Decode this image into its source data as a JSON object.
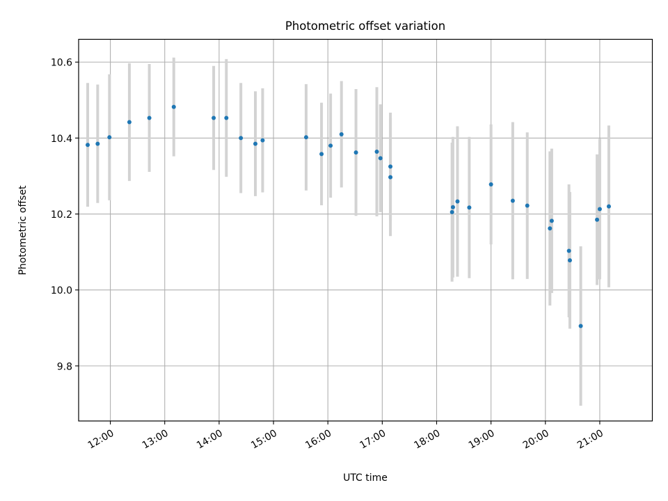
{
  "chart_data": {
    "type": "scatter",
    "title": "Photometric offset variation",
    "xlabel": "UTC time",
    "ylabel": "Photometric offset",
    "x_axis": {
      "kind": "time",
      "range": [
        "11:25",
        "21:58"
      ],
      "ticks": [
        "12:00",
        "13:00",
        "14:00",
        "15:00",
        "16:00",
        "17:00",
        "18:00",
        "19:00",
        "20:00",
        "21:00"
      ]
    },
    "y_axis": {
      "range": [
        9.655,
        10.66
      ],
      "ticks": [
        "9.8",
        "10.0",
        "10.2",
        "10.4",
        "10.6"
      ]
    },
    "grid": true,
    "colors": {
      "points": "#1f77b4",
      "errorbars": "#d3d3d3",
      "grid": "#b0b0b0"
    },
    "series": [
      {
        "points": [
          {
            "t": "11:35",
            "y": 10.382,
            "err": 0.163
          },
          {
            "t": "11:46",
            "y": 10.385,
            "err": 0.156
          },
          {
            "t": "11:59",
            "y": 10.402,
            "err": 0.166
          },
          {
            "t": "12:21",
            "y": 10.442,
            "err": 0.155
          },
          {
            "t": "12:43",
            "y": 10.453,
            "err": 0.142
          },
          {
            "t": "13:10",
            "y": 10.482,
            "err": 0.13
          },
          {
            "t": "13:54",
            "y": 10.453,
            "err": 0.137
          },
          {
            "t": "14:08",
            "y": 10.453,
            "err": 0.155
          },
          {
            "t": "14:24",
            "y": 10.4,
            "err": 0.145
          },
          {
            "t": "14:40",
            "y": 10.385,
            "err": 0.138
          },
          {
            "t": "14:48",
            "y": 10.394,
            "err": 0.137
          },
          {
            "t": "15:36",
            "y": 10.402,
            "err": 0.14
          },
          {
            "t": "15:53",
            "y": 10.358,
            "err": 0.135
          },
          {
            "t": "16:03",
            "y": 10.38,
            "err": 0.137
          },
          {
            "t": "16:15",
            "y": 10.41,
            "err": 0.14
          },
          {
            "t": "16:31",
            "y": 10.362,
            "err": 0.167
          },
          {
            "t": "16:54",
            "y": 10.364,
            "err": 0.17
          },
          {
            "t": "16:58",
            "y": 10.347,
            "err": 0.142
          },
          {
            "t": "17:09",
            "y": 10.297,
            "err": 0.155
          },
          {
            "t": "17:09",
            "y": 10.325,
            "err": 0.142
          },
          {
            "t": "18:17",
            "y": 10.205,
            "err": 0.183
          },
          {
            "t": "18:18",
            "y": 10.218,
            "err": 0.185
          },
          {
            "t": "18:23",
            "y": 10.233,
            "err": 0.198
          },
          {
            "t": "18:36",
            "y": 10.217,
            "err": 0.186
          },
          {
            "t": "19:00",
            "y": 10.278,
            "err": 0.158
          },
          {
            "t": "19:24",
            "y": 10.235,
            "err": 0.207
          },
          {
            "t": "19:40",
            "y": 10.222,
            "err": 0.193
          },
          {
            "t": "20:05",
            "y": 10.162,
            "err": 0.203
          },
          {
            "t": "20:07",
            "y": 10.182,
            "err": 0.19
          },
          {
            "t": "20:26",
            "y": 10.103,
            "err": 0.175
          },
          {
            "t": "20:27",
            "y": 10.078,
            "err": 0.18
          },
          {
            "t": "20:39",
            "y": 9.905,
            "err": 0.21
          },
          {
            "t": "20:57",
            "y": 10.185,
            "err": 0.172
          },
          {
            "t": "21:00",
            "y": 10.213,
            "err": 0.185
          },
          {
            "t": "21:10",
            "y": 10.22,
            "err": 0.213
          }
        ]
      }
    ]
  }
}
